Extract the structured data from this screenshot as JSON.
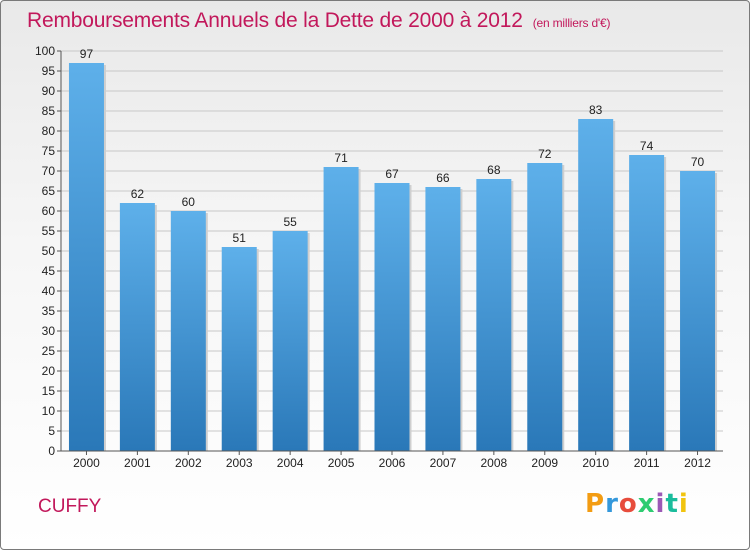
{
  "colors": {
    "title": "#c2185b",
    "bar_top": "#5eb0ea",
    "bar_bottom": "#2a78b8",
    "grid": "#c8c8c8",
    "axis_text": "#222222"
  },
  "header": {
    "title": "Remboursements Annuels de la Dette de 2000 à 2012",
    "subtitle": "(en milliers d'€)"
  },
  "footer": {
    "commune": "CUFFY",
    "logo": "Proxiti"
  },
  "chart_data": {
    "type": "bar",
    "categories": [
      "2000",
      "2001",
      "2002",
      "2003",
      "2004",
      "2005",
      "2006",
      "2007",
      "2008",
      "2009",
      "2010",
      "2011",
      "2012"
    ],
    "values": [
      97,
      62,
      60,
      51,
      55,
      71,
      67,
      66,
      68,
      72,
      83,
      74,
      70
    ],
    "ylim": [
      0,
      100
    ],
    "ytick_step": 5,
    "grid": true,
    "data_labels": true
  }
}
